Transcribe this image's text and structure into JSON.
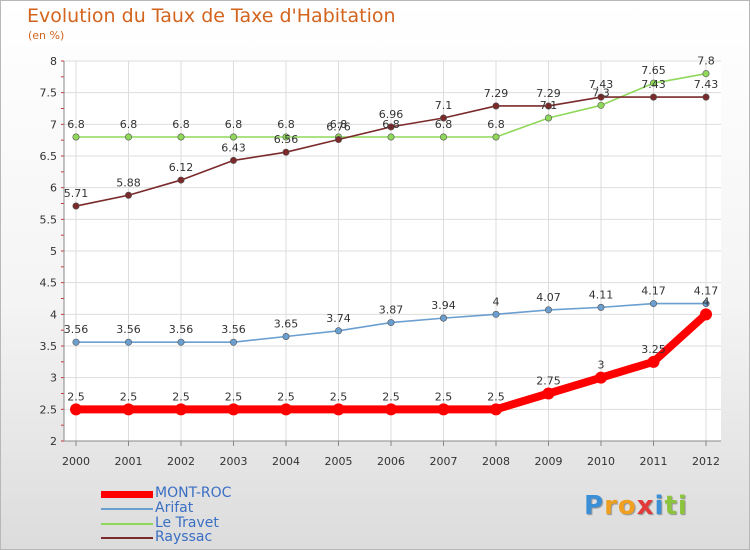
{
  "title": "Evolution du Taux de Taxe d'Habitation",
  "subtitle": "(en %)",
  "logo": {
    "text": "Proxiti",
    "letters": [
      {
        "ch": "P",
        "color": "#3a8fd6"
      },
      {
        "ch": "r",
        "color": "#f0a020"
      },
      {
        "ch": "o",
        "color": "#f0a020"
      },
      {
        "ch": "x",
        "color": "#e23a3a"
      },
      {
        "ch": "i",
        "color": "#3a8fd6"
      },
      {
        "ch": "t",
        "color": "#8cc43c"
      },
      {
        "ch": "i",
        "color": "#8cc43c"
      }
    ]
  },
  "chart_data": {
    "type": "line",
    "x": [
      "2000",
      "2001",
      "2002",
      "2003",
      "2004",
      "2005",
      "2006",
      "2007",
      "2008",
      "2009",
      "2010",
      "2011",
      "2012"
    ],
    "yticks": [
      "2",
      "2.5",
      "3",
      "3.5",
      "4",
      "4.5",
      "5",
      "5.5",
      "6",
      "6.5",
      "7",
      "7.5",
      "8"
    ],
    "ylim": [
      2,
      8
    ],
    "grid": true,
    "legend_position": "bottom-left",
    "series": [
      {
        "name": "MONT-ROC",
        "color": "#ff0000",
        "values": [
          2.5,
          2.5,
          2.5,
          2.5,
          2.5,
          2.5,
          2.5,
          2.5,
          2.5,
          2.75,
          3,
          3.25,
          4
        ],
        "labels": [
          "2.5",
          "2.5",
          "2.5",
          "2.5",
          "2.5",
          "2.5",
          "2.5",
          "2.5",
          "2.5",
          "2.75",
          "3",
          "3.25",
          "4"
        ]
      },
      {
        "name": "Arifat",
        "color": "#6a9fd0",
        "values": [
          3.56,
          3.56,
          3.56,
          3.56,
          3.65,
          3.74,
          3.87,
          3.94,
          4,
          4.07,
          4.11,
          4.17,
          4.17
        ],
        "labels": [
          "3.56",
          "3.56",
          "3.56",
          "3.56",
          "3.65",
          "3.74",
          "3.87",
          "3.94",
          "4",
          "4.07",
          "4.11",
          "4.17",
          "4.17"
        ]
      },
      {
        "name": "Le Travet",
        "color": "#8fd85a",
        "values": [
          6.8,
          6.8,
          6.8,
          6.8,
          6.8,
          6.8,
          6.8,
          6.8,
          6.8,
          7.1,
          7.3,
          7.65,
          7.8
        ],
        "labels": [
          "6.8",
          "6.8",
          "6.8",
          "6.8",
          "6.8",
          "6.8",
          "6.8",
          "6.8",
          "6.8",
          "7.1",
          "7.3",
          "7.65",
          "7.8"
        ]
      },
      {
        "name": "Rayssac",
        "color": "#7a2a2a",
        "values": [
          5.71,
          5.88,
          6.12,
          6.43,
          6.56,
          6.76,
          6.96,
          7.1,
          7.29,
          7.29,
          7.43,
          7.43,
          7.43
        ],
        "labels": [
          "5.71",
          "5.88",
          "6.12",
          "6.43",
          "6.56",
          "6.76",
          "6.96",
          "7.1",
          "7.29",
          "7.29",
          "7.43",
          "7.43",
          "7.43"
        ]
      }
    ]
  }
}
